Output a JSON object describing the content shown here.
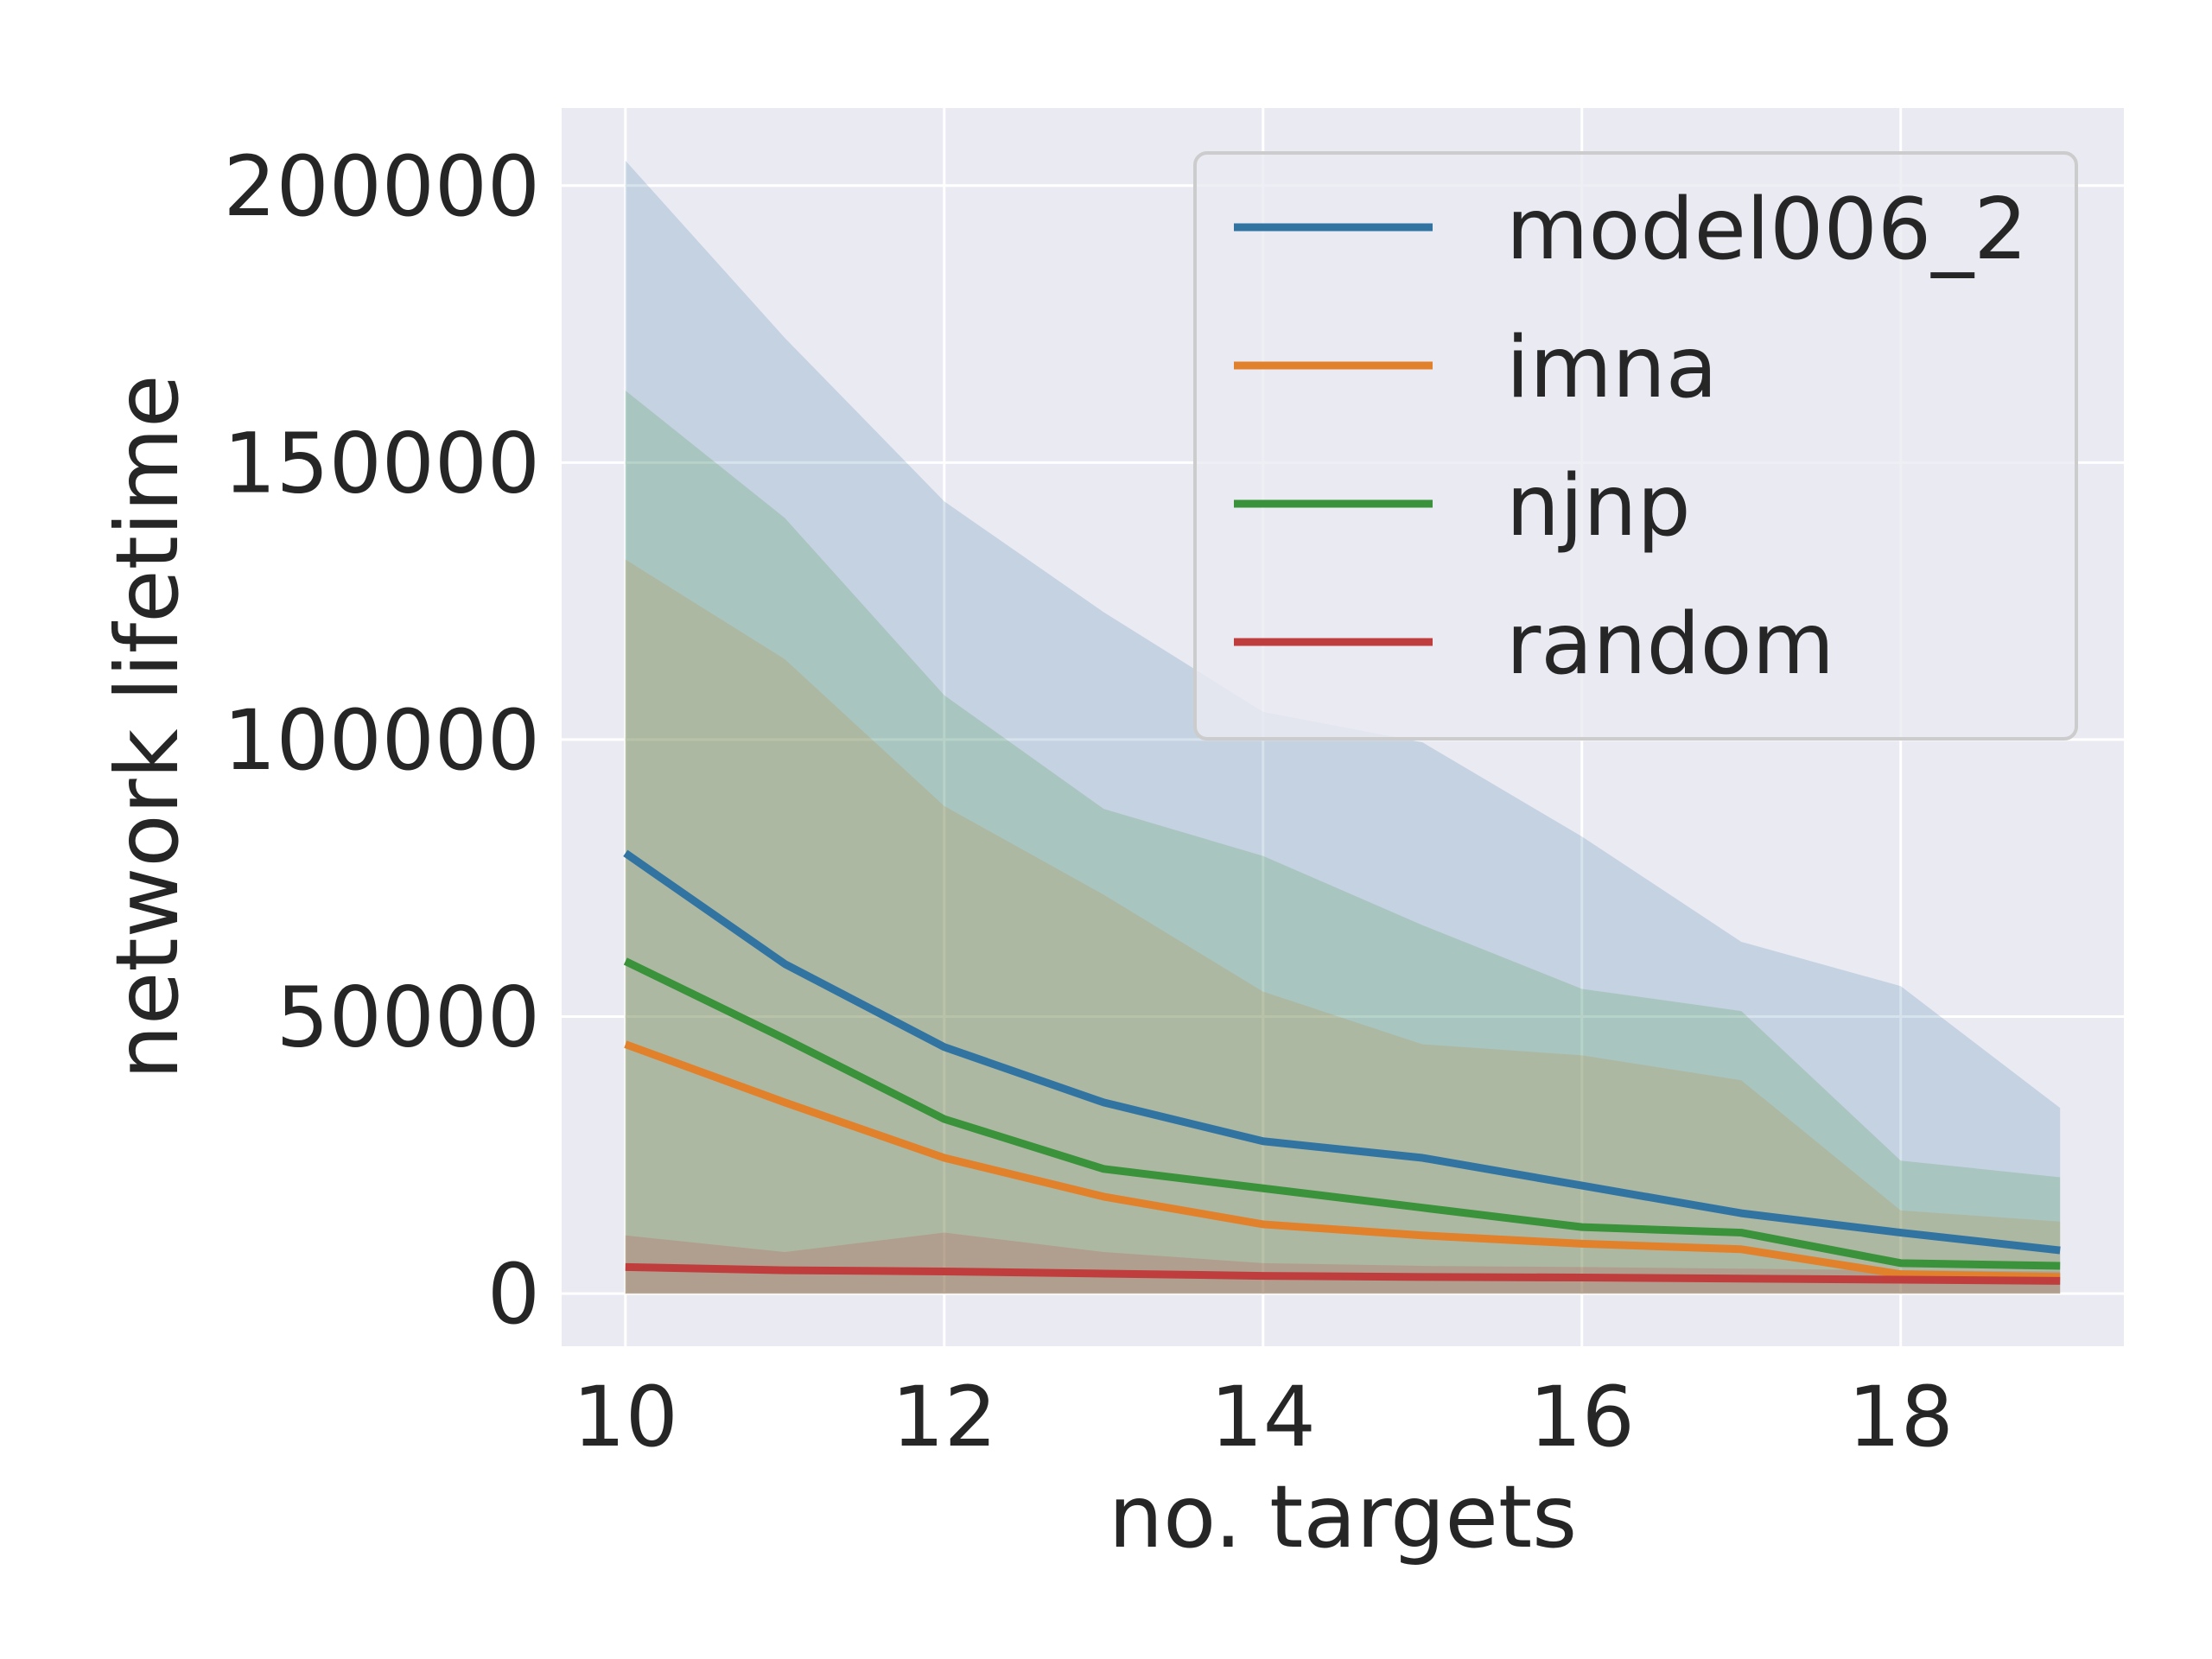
{
  "chart_data": {
    "type": "line",
    "xlabel": "no. targets",
    "ylabel": "network lifetime",
    "xlim": [
      9.6,
      19.4
    ],
    "ylim": [
      -9500,
      214000
    ],
    "xticks": [
      10,
      12,
      14,
      16,
      18
    ],
    "yticks": [
      0,
      50000,
      100000,
      150000,
      200000
    ],
    "grid": true,
    "legend_position": "top-right",
    "x": [
      10,
      11,
      12,
      13,
      14,
      15,
      16,
      17,
      18,
      19
    ],
    "series": [
      {
        "name": "model006_2",
        "color": "#3274a1",
        "values": [
          79500,
          59500,
          44500,
          34500,
          27500,
          24500,
          19500,
          14500,
          11000,
          7800
        ],
        "upper": [
          204500,
          172500,
          143000,
          123000,
          105000,
          99500,
          82500,
          63500,
          55500,
          33500
        ],
        "lower": [
          0,
          0,
          0,
          0,
          0,
          0,
          0,
          0,
          0,
          0
        ]
      },
      {
        "name": "imna",
        "color": "#e1812c",
        "values": [
          45000,
          34500,
          24500,
          17500,
          12500,
          10500,
          9000,
          8000,
          3500,
          3000
        ],
        "upper": [
          132500,
          114500,
          88000,
          72000,
          54500,
          45000,
          43000,
          38500,
          15000,
          13000
        ],
        "lower": [
          0,
          0,
          0,
          0,
          0,
          0,
          0,
          0,
          0,
          0
        ]
      },
      {
        "name": "njnp",
        "color": "#3a923a",
        "values": [
          60000,
          46000,
          31500,
          22500,
          19000,
          15500,
          12000,
          11000,
          5500,
          5000
        ],
        "upper": [
          163000,
          140000,
          108000,
          87500,
          79000,
          66500,
          55000,
          51000,
          24000,
          21000
        ],
        "lower": [
          0,
          0,
          0,
          0,
          0,
          0,
          0,
          0,
          0,
          0
        ]
      },
      {
        "name": "random",
        "color": "#c03d3e",
        "values": [
          4800,
          4200,
          4000,
          3600,
          3200,
          3000,
          2900,
          2700,
          2500,
          2300
        ],
        "upper": [
          10500,
          7500,
          11000,
          7500,
          5500,
          5000,
          4800,
          4500,
          4200,
          4000
        ],
        "lower": [
          0,
          0,
          0,
          0,
          0,
          0,
          0,
          0,
          0,
          0
        ]
      }
    ]
  },
  "colors": {
    "plot_background": "#eaeaf2",
    "grid": "#ffffff",
    "text": "#262626",
    "legend_frame": "#cccccc"
  }
}
